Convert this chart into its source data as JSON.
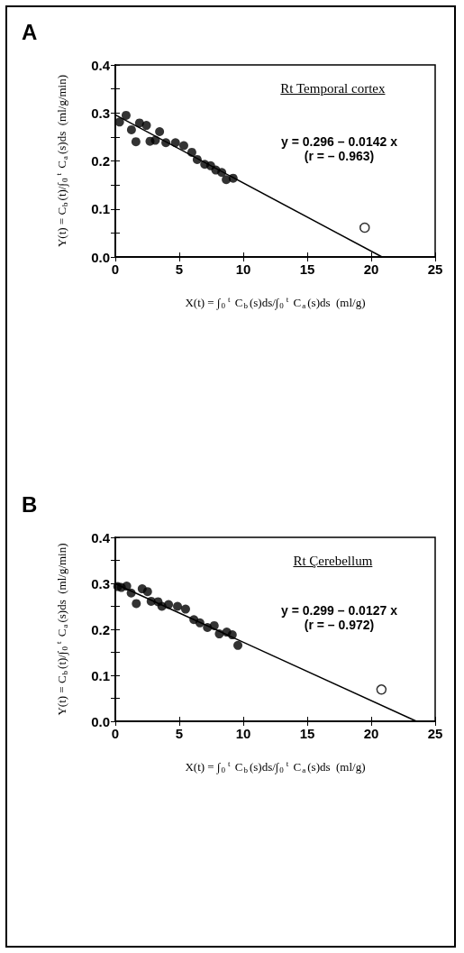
{
  "chart_data": [
    {
      "type": "scatter",
      "title": "A",
      "xlabel": "X(t) = ∫$_{0}$$^{t}$ C$_{b}$(s)ds/∫$_{0}$$^{t}$ C$_{a}$(s)ds  (ml/g)",
      "ylabel": "Y(t) = C$_{b}$(t)/∫$_{0}$$^{t}$ C$_{a}$(s)ds  (ml/g/min)",
      "xlim": [
        0,
        25
      ],
      "xticks": [
        0,
        5,
        10,
        15,
        20,
        25
      ],
      "ylim": [
        0,
        0.4
      ],
      "yticks": [
        {
          "value": 0,
          "label": "0.0"
        },
        {
          "value": 0.05,
          "label": null
        },
        0.1,
        {
          "value": 0.15,
          "label": null
        },
        0.2,
        {
          "value": 0.25,
          "label": null
        },
        0.3,
        {
          "value": 0.35,
          "label": null
        },
        0.4
      ],
      "annotations": [
        "Rt Temporal cortex",
        "y = 0.296 – 0.0142 x",
        "(r = – 0.963)"
      ],
      "series": [
        {
          "color": "#000000",
          "marker": "circle",
          "x": [
            0.33,
            0.84,
            1.26,
            1.61,
            1.89,
            2.43,
            2.71,
            3.13,
            3.46,
            3.95,
            4.7,
            5.35,
            5.98,
            6.4,
            6.99,
            7.45,
            7.85,
            8.32,
            8.67,
            9.21
          ],
          "values": [
            0.281,
            0.295,
            0.265,
            0.24,
            0.279,
            0.274,
            0.241,
            0.243,
            0.261,
            0.238,
            0.238,
            0.232,
            0.218,
            0.203,
            0.193,
            0.19,
            0.181,
            0.176,
            0.161,
            0.164
          ]
        },
        {
          "color": "#ffffff",
          "marker": "circle",
          "x": [
            19.49
          ],
          "values": [
            0.061
          ]
        },
        {
          "type": "line",
          "color": "#000000",
          "marker": "none",
          "line_style": "solid",
          "x": [
            0,
            20.85
          ],
          "values": [
            0.296,
            0
          ]
        }
      ]
    },
    {
      "type": "scatter",
      "title": "B",
      "xlabel": "X(t) = ∫$_{0}$$^{t}$ C$_{b}$(s)ds/∫$_{0}$$^{t}$ C$_{a}$(s)ds  (ml/g)",
      "ylabel": "Y(t) = C$_{b}$(t)/∫$_{0}$$^{t}$ C$_{a}$(s)ds  (ml/g/min)",
      "xlim": [
        0,
        25
      ],
      "xticks": [
        0,
        5,
        10,
        15,
        20,
        25
      ],
      "ylim": [
        0,
        0.4
      ],
      "yticks": [
        {
          "value": 0,
          "label": "0.0"
        },
        {
          "value": 0.05,
          "label": null
        },
        0.1,
        {
          "value": 0.15,
          "label": null
        },
        0.2,
        {
          "value": 0.25,
          "label": null
        },
        0.3,
        {
          "value": 0.35,
          "label": null
        },
        0.4
      ],
      "annotations": [
        "Rt Çerebellum",
        "y = 0.299 – 0.0127 x",
        "(r = – 0.972)"
      ],
      "series": [
        {
          "color": "#000000",
          "marker": "circle",
          "x": [
            0.19,
            0.47,
            0.89,
            1.24,
            1.64,
            2.1,
            2.52,
            2.8,
            3.34,
            3.64,
            4.16,
            4.86,
            5.49,
            6.14,
            6.61,
            7.2,
            7.73,
            8.13,
            8.71,
            9.14,
            9.58
          ],
          "values": [
            0.293,
            0.291,
            0.294,
            0.279,
            0.256,
            0.288,
            0.282,
            0.261,
            0.26,
            0.25,
            0.254,
            0.25,
            0.244,
            0.221,
            0.214,
            0.204,
            0.208,
            0.19,
            0.194,
            0.188,
            0.165
          ]
        },
        {
          "color": "#ffffff",
          "marker": "circle",
          "x": [
            20.8
          ],
          "values": [
            0.069
          ]
        },
        {
          "type": "line",
          "color": "#000000",
          "marker": "none",
          "line_style": "solid",
          "x": [
            0,
            23.54
          ],
          "values": [
            0.299,
            0
          ]
        }
      ]
    }
  ]
}
